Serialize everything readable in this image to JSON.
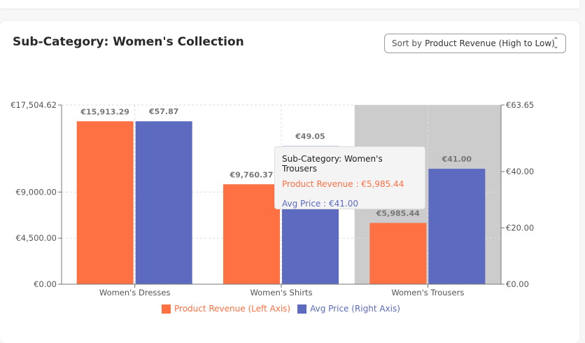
{
  "header": {
    "title": "Sub-Category: Women's Collection"
  },
  "sort": {
    "prefix": "Sort by",
    "value": "Product Revenue (High to Low)",
    "icon": "chevron-up-down-icon"
  },
  "colors": {
    "revenue": "#ff7043",
    "price": "#5c6bc0",
    "highlight": "#cccccc"
  },
  "chart_data": {
    "type": "bar",
    "categories": [
      "Women's Dresses",
      "Women's Shirts",
      "Women's Trousers"
    ],
    "series": [
      {
        "name": "Product Revenue (Left Axis)",
        "axis": "left",
        "values": [
          15913.29,
          9760.37,
          5985.44
        ],
        "labels": [
          "€15,913.29",
          "€9,760.37",
          "€5,985.44"
        ]
      },
      {
        "name": "Avg Price (Right Axis)",
        "axis": "right",
        "values": [
          57.87,
          49.05,
          41.0
        ],
        "labels": [
          "€57.87",
          "€49.05",
          "€41.00"
        ]
      }
    ],
    "left_axis": {
      "range": [
        0,
        17504.62
      ],
      "ticks": [
        0,
        4500,
        9000,
        17504.62
      ],
      "tick_labels": [
        "€0.00",
        "€4,500.00",
        "€9,000.00",
        "€17,504.62"
      ]
    },
    "right_axis": {
      "range": [
        0,
        63.65
      ],
      "ticks": [
        0,
        20,
        40,
        63.65
      ],
      "tick_labels": [
        "€0.00",
        "€20.00",
        "€40.00",
        "€63.65"
      ]
    },
    "grid": true,
    "legend_position": "bottom",
    "highlighted_category": "Women's Trousers"
  },
  "tooltip": {
    "title": "Sub-Category: Women's Trousers",
    "revenue": "Product Revenue : €5,985.44",
    "price": "Avg Price : €41.00"
  }
}
